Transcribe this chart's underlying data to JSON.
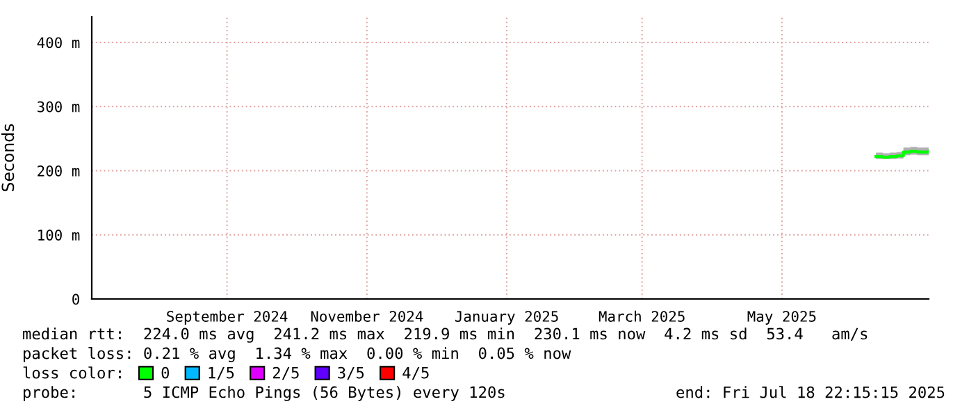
{
  "chart_data": {
    "type": "step",
    "ylabel": "Seconds",
    "x": [
      "2025-06-25",
      "2025-06-28",
      "2025-07-01",
      "2025-07-04",
      "2025-07-07",
      "2025-07-10",
      "2025-07-13",
      "2025-07-18"
    ],
    "series": [
      {
        "name": "0",
        "color": "#00ff00",
        "values": [
          222,
          221,
          222,
          223,
          229,
          230,
          229,
          230
        ],
        "lower": [
          218,
          218,
          218,
          219,
          224,
          225,
          224,
          225
        ],
        "upper": [
          228,
          227,
          228,
          229,
          236,
          237,
          236,
          236
        ]
      },
      {
        "name": "1/5",
        "color": "#00b8ff",
        "values": [
          null,
          null,
          null,
          null,
          null,
          null,
          null,
          null
        ]
      },
      {
        "name": "2/5",
        "color": "#e000ff",
        "values": [
          null,
          null,
          null,
          null,
          null,
          null,
          null,
          null
        ]
      },
      {
        "name": "3/5",
        "color": "#6000ff",
        "values": [
          null,
          null,
          null,
          null,
          null,
          null,
          null,
          null
        ]
      },
      {
        "name": "4/5",
        "color": "#ff0000",
        "values": [
          null,
          null,
          null,
          null,
          null,
          null,
          null,
          null
        ]
      }
    ],
    "xlim": [
      "2024-07-18",
      "2025-07-18"
    ],
    "xticks": [
      {
        "value": "2024-09-15",
        "label": "September 2024"
      },
      {
        "value": "2024-11-15",
        "label": "November 2024"
      },
      {
        "value": "2025-01-15",
        "label": "January 2025"
      },
      {
        "value": "2025-03-15",
        "label": "March 2025"
      },
      {
        "value": "2025-05-15",
        "label": "May 2025"
      }
    ],
    "ylim": [
      0,
      440
    ],
    "yticks": [
      0,
      {
        "value": 100,
        "label": "100 m"
      },
      {
        "value": 200,
        "label": "200 m"
      },
      {
        "value": 300,
        "label": "300 m"
      },
      {
        "value": 400,
        "label": "400 m"
      }
    ],
    "grid": true,
    "legend": "bottom",
    "annotations": [
      "median rtt:  224.0 ms avg  241.2 ms max  219.9 ms min  230.1 ms now  4.2 ms sd  53.4   am/s",
      "packet loss: 0.21 % avg  1.34 % max  0.00 % min  0.05 % now",
      "loss color:",
      "probe:       5 ICMP Echo Pings (56 Bytes) every 120s",
      "end: Fri Jul 18 22:15:15 2025"
    ]
  }
}
